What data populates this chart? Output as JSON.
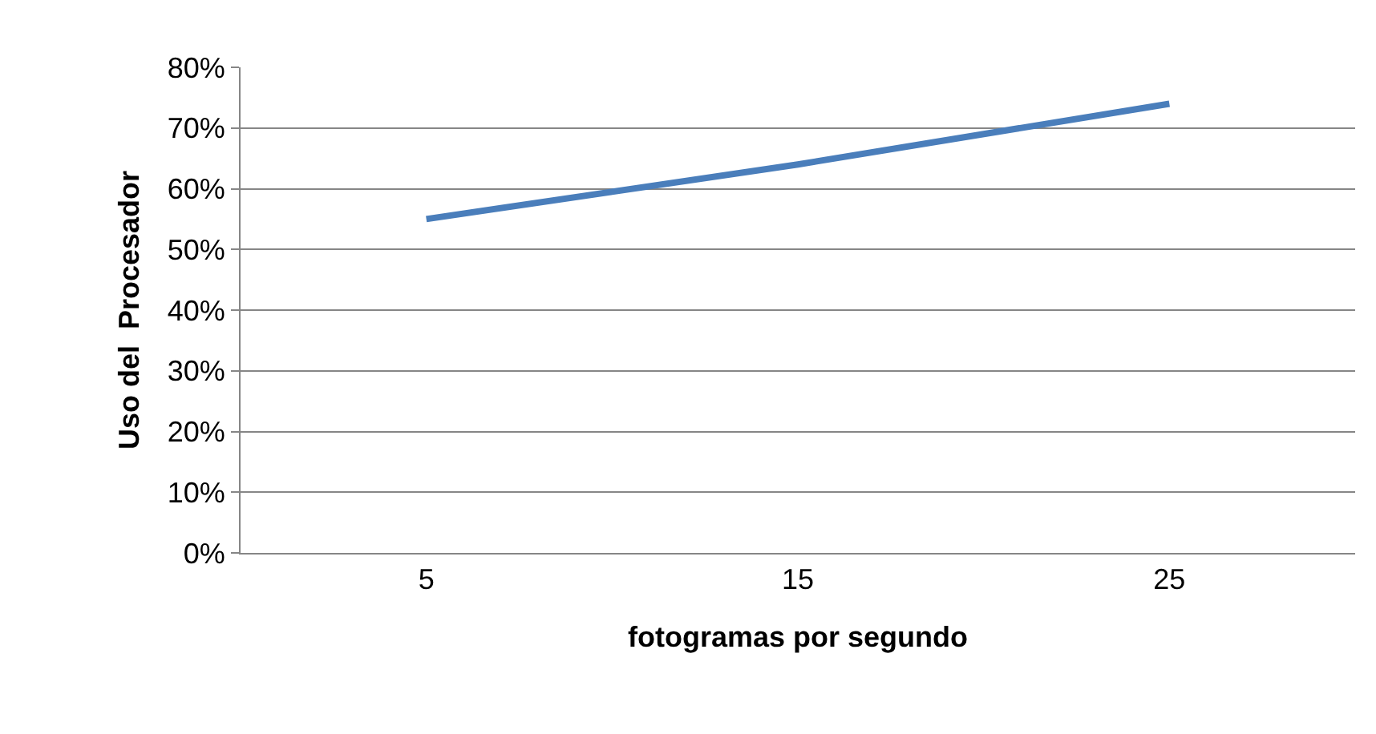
{
  "chart_data": {
    "type": "line",
    "xlabel": "fotogramas por segundo",
    "ylabel": "Uso del  Procesador",
    "categories": [
      "5",
      "15",
      "25"
    ],
    "series": [
      {
        "color": "#4a7ebb",
        "values": [
          55,
          64,
          74
        ]
      }
    ],
    "ylim": [
      0,
      80
    ],
    "yticks": [
      {
        "value": 0,
        "label": "0%"
      },
      {
        "value": 10,
        "label": "10%"
      },
      {
        "value": 20,
        "label": "20%"
      },
      {
        "value": 30,
        "label": "30%"
      },
      {
        "value": 40,
        "label": "40%"
      },
      {
        "value": 50,
        "label": "50%"
      },
      {
        "value": 60,
        "label": "60%"
      },
      {
        "value": 70,
        "label": "70%"
      },
      {
        "value": 80,
        "label": "80%"
      }
    ],
    "grid": "y",
    "marker": "none",
    "line_style": "solid",
    "legend": false
  }
}
